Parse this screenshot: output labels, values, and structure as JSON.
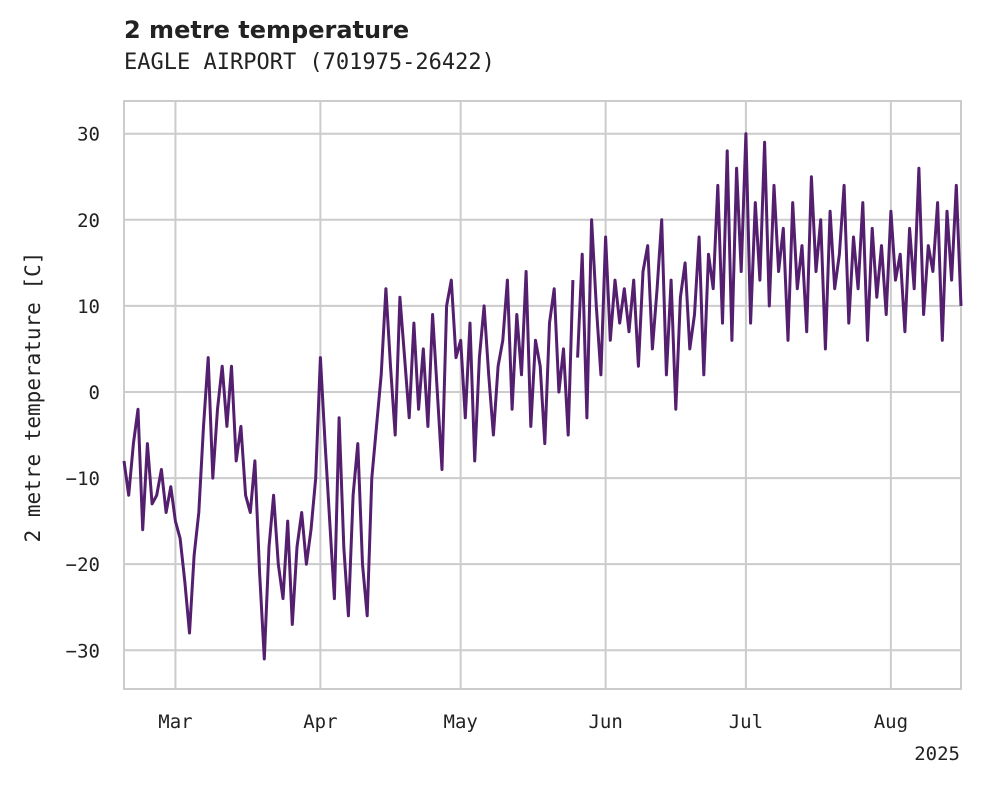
{
  "chart_data": {
    "type": "line",
    "title": "2 metre temperature",
    "subtitle": "EAGLE AIRPORT (701975-26422)",
    "xlabel": "",
    "ylabel": "2 metre temperature [C]",
    "x_range": [
      "2025-02-18",
      "2025-08-16"
    ],
    "ylim": [
      -34.5,
      33.8
    ],
    "y_ticks": [
      30,
      20,
      10,
      0,
      -10,
      -20,
      -30
    ],
    "y_tick_labels": [
      "30",
      "20",
      "10",
      "0",
      "−10",
      "−20",
      "−30"
    ],
    "x_ticks": [
      "2025-03-01",
      "2025-04-01",
      "2025-05-01",
      "2025-06-01",
      "2025-07-01",
      "2025-08-01"
    ],
    "x_tick_labels": [
      "Mar",
      "Apr",
      "May",
      "Jun",
      "Jul",
      "Aug"
    ],
    "x_offset_label": "2025",
    "grid": true,
    "legend": "none",
    "series": [
      {
        "color": "#541f6e",
        "points": [
          [
            "2025-02-18",
            -8
          ],
          [
            "2025-02-19",
            -12
          ],
          [
            "2025-02-20",
            -6
          ],
          [
            "2025-02-21",
            -2
          ],
          [
            "2025-02-22",
            -16
          ],
          [
            "2025-02-23",
            -6
          ],
          [
            "2025-02-24",
            -13
          ],
          [
            "2025-02-25",
            -12
          ],
          [
            "2025-02-26",
            -9
          ],
          [
            "2025-02-27",
            -14
          ],
          [
            "2025-02-28",
            -11
          ],
          [
            "2025-03-01",
            -15
          ],
          [
            "2025-03-02",
            -17
          ],
          [
            "2025-03-03",
            -22
          ],
          [
            "2025-03-04",
            -28
          ],
          [
            "2025-03-05",
            -19
          ],
          [
            "2025-03-06",
            -14
          ],
          [
            "2025-03-07",
            -4
          ],
          [
            "2025-03-08",
            4
          ],
          [
            "2025-03-09",
            -10
          ],
          [
            "2025-03-10",
            -2
          ],
          [
            "2025-03-11",
            3
          ],
          [
            "2025-03-12",
            -4
          ],
          [
            "2025-03-13",
            3
          ],
          [
            "2025-03-14",
            -8
          ],
          [
            "2025-03-15",
            -4
          ],
          [
            "2025-03-16",
            -12
          ],
          [
            "2025-03-17",
            -14
          ],
          [
            "2025-03-18",
            -8
          ],
          [
            "2025-03-19",
            -21
          ],
          [
            "2025-03-20",
            -31
          ],
          [
            "2025-03-21",
            -18
          ],
          [
            "2025-03-22",
            -12
          ],
          [
            "2025-03-23",
            -20
          ],
          [
            "2025-03-24",
            -24
          ],
          [
            "2025-03-25",
            -15
          ],
          [
            "2025-03-26",
            -27
          ],
          [
            "2025-03-27",
            -18
          ],
          [
            "2025-03-28",
            -14
          ],
          [
            "2025-03-29",
            -20
          ],
          [
            "2025-03-30",
            -16
          ],
          [
            "2025-03-31",
            -10
          ],
          [
            "2025-04-01",
            4
          ],
          [
            "2025-04-02",
            -6
          ],
          [
            "2025-04-03",
            -15
          ],
          [
            "2025-04-04",
            -24
          ],
          [
            "2025-04-05",
            -3
          ],
          [
            "2025-04-06",
            -18
          ],
          [
            "2025-04-07",
            -26
          ],
          [
            "2025-04-08",
            -12
          ],
          [
            "2025-04-09",
            -6
          ],
          [
            "2025-04-10",
            -20
          ],
          [
            "2025-04-11",
            -26
          ],
          [
            "2025-04-12",
            -10
          ],
          [
            "2025-04-13",
            -4
          ],
          [
            "2025-04-14",
            2
          ],
          [
            "2025-04-15",
            12
          ],
          [
            "2025-04-16",
            3
          ],
          [
            "2025-04-17",
            -5
          ],
          [
            "2025-04-18",
            11
          ],
          [
            "2025-04-19",
            4
          ],
          [
            "2025-04-20",
            -3
          ],
          [
            "2025-04-21",
            8
          ],
          [
            "2025-04-22",
            -2
          ],
          [
            "2025-04-23",
            5
          ],
          [
            "2025-04-24",
            -4
          ],
          [
            "2025-04-25",
            9
          ],
          [
            "2025-04-26",
            0
          ],
          [
            "2025-04-27",
            -9
          ],
          [
            "2025-04-28",
            10
          ],
          [
            "2025-04-29",
            13
          ],
          [
            "2025-04-30",
            4
          ],
          [
            "2025-05-01",
            6
          ],
          [
            "2025-05-02",
            -3
          ],
          [
            "2025-05-03",
            8
          ],
          [
            "2025-05-04",
            -8
          ],
          [
            "2025-05-05",
            4
          ],
          [
            "2025-05-06",
            10
          ],
          [
            "2025-05-07",
            2
          ],
          [
            "2025-05-08",
            -5
          ],
          [
            "2025-05-09",
            3
          ],
          [
            "2025-05-10",
            6
          ],
          [
            "2025-05-11",
            13
          ],
          [
            "2025-05-12",
            -2
          ],
          [
            "2025-05-13",
            9
          ],
          [
            "2025-05-14",
            2
          ],
          [
            "2025-05-15",
            14
          ],
          [
            "2025-05-16",
            -4
          ],
          [
            "2025-05-17",
            6
          ],
          [
            "2025-05-18",
            3
          ],
          [
            "2025-05-19",
            -6
          ],
          [
            "2025-05-20",
            8
          ],
          [
            "2025-05-21",
            12
          ],
          [
            "2025-05-22",
            0
          ],
          [
            "2025-05-23",
            5
          ],
          [
            "2025-05-24",
            -5
          ],
          [
            "2025-05-25",
            13
          ],
          [
            "2025-05-26",
            4
          ],
          [
            "2025-05-27",
            16
          ],
          [
            "2025-05-28",
            -3
          ],
          [
            "2025-05-29",
            20
          ],
          [
            "2025-05-30",
            10
          ],
          [
            "2025-05-31",
            2
          ],
          [
            "2025-06-01",
            18
          ],
          [
            "2025-06-02",
            6
          ],
          [
            "2025-06-03",
            13
          ],
          [
            "2025-06-04",
            8
          ],
          [
            "2025-06-05",
            12
          ],
          [
            "2025-06-06",
            7
          ],
          [
            "2025-06-07",
            13
          ],
          [
            "2025-06-08",
            3
          ],
          [
            "2025-06-09",
            14
          ],
          [
            "2025-06-10",
            17
          ],
          [
            "2025-06-11",
            5
          ],
          [
            "2025-06-12",
            12
          ],
          [
            "2025-06-13",
            20
          ],
          [
            "2025-06-14",
            2
          ],
          [
            "2025-06-15",
            13
          ],
          [
            "2025-06-16",
            -2
          ],
          [
            "2025-06-17",
            11
          ],
          [
            "2025-06-18",
            15
          ],
          [
            "2025-06-19",
            5
          ],
          [
            "2025-06-20",
            9
          ],
          [
            "2025-06-21",
            18
          ],
          [
            "2025-06-22",
            2
          ],
          [
            "2025-06-23",
            16
          ],
          [
            "2025-06-24",
            12
          ],
          [
            "2025-06-25",
            24
          ],
          [
            "2025-06-26",
            8
          ],
          [
            "2025-06-27",
            28
          ],
          [
            "2025-06-28",
            6
          ],
          [
            "2025-06-29",
            26
          ],
          [
            "2025-06-30",
            14
          ],
          [
            "2025-07-01",
            30
          ],
          [
            "2025-07-02",
            8
          ],
          [
            "2025-07-03",
            22
          ],
          [
            "2025-07-04",
            13
          ],
          [
            "2025-07-05",
            29
          ],
          [
            "2025-07-06",
            10
          ],
          [
            "2025-07-07",
            24
          ],
          [
            "2025-07-08",
            14
          ],
          [
            "2025-07-09",
            19
          ],
          [
            "2025-07-10",
            6
          ],
          [
            "2025-07-11",
            22
          ],
          [
            "2025-07-12",
            12
          ],
          [
            "2025-07-13",
            17
          ],
          [
            "2025-07-14",
            7
          ],
          [
            "2025-07-15",
            25
          ],
          [
            "2025-07-16",
            14
          ],
          [
            "2025-07-17",
            20
          ],
          [
            "2025-07-18",
            5
          ],
          [
            "2025-07-19",
            21
          ],
          [
            "2025-07-20",
            12
          ],
          [
            "2025-07-21",
            16
          ],
          [
            "2025-07-22",
            24
          ],
          [
            "2025-07-23",
            8
          ],
          [
            "2025-07-24",
            18
          ],
          [
            "2025-07-25",
            12
          ],
          [
            "2025-07-26",
            22
          ],
          [
            "2025-07-27",
            6
          ],
          [
            "2025-07-28",
            19
          ],
          [
            "2025-07-29",
            11
          ],
          [
            "2025-07-30",
            17
          ],
          [
            "2025-07-31",
            9
          ],
          [
            "2025-08-01",
            21
          ],
          [
            "2025-08-02",
            13
          ],
          [
            "2025-08-03",
            16
          ],
          [
            "2025-08-04",
            7
          ],
          [
            "2025-08-05",
            19
          ],
          [
            "2025-08-06",
            12
          ],
          [
            "2025-08-07",
            26
          ],
          [
            "2025-08-08",
            9
          ],
          [
            "2025-08-09",
            17
          ],
          [
            "2025-08-10",
            14
          ],
          [
            "2025-08-11",
            22
          ],
          [
            "2025-08-12",
            6
          ],
          [
            "2025-08-13",
            21
          ],
          [
            "2025-08-14",
            13
          ],
          [
            "2025-08-15",
            24
          ],
          [
            "2025-08-16",
            10
          ]
        ],
        "gaps": [
          [
            "2025-05-25",
            "2025-06-01"
          ]
        ]
      }
    ]
  }
}
